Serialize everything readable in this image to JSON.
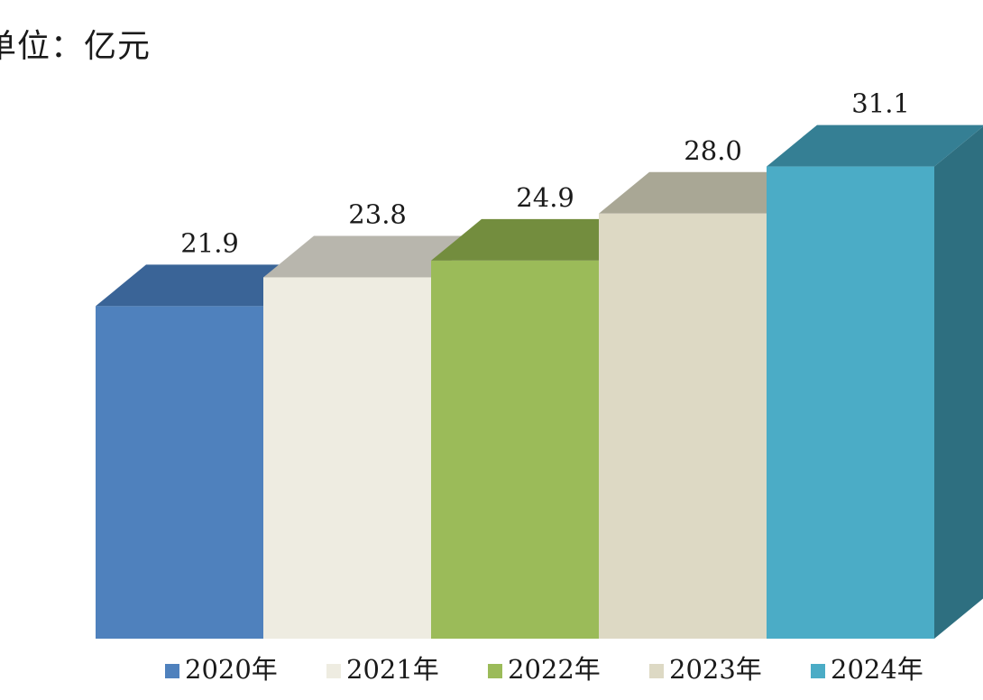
{
  "chart_data": {
    "type": "bar",
    "unit_label": "单位：亿元",
    "categories": [
      "2020年",
      "2021年",
      "2022年",
      "2023年",
      "2024年"
    ],
    "values": [
      21.9,
      23.8,
      24.9,
      28.0,
      31.1
    ],
    "value_labels": [
      "21.9",
      "23.8",
      "24.9",
      "28.0",
      "31.1"
    ],
    "legend_position": "bottom",
    "grid": false,
    "colors": {
      "front": [
        "#4f81bd",
        "#eeece1",
        "#9bbb59",
        "#ddd9c4",
        "#4bacc6"
      ],
      "top": [
        "#3a6497",
        "#b8b6ad",
        "#738d3e",
        "#a9a795",
        "#357f94"
      ],
      "side": [
        "#3a6497",
        "#b8b6ad",
        "#738d3e",
        "#a9a795",
        "#2e6f80"
      ]
    }
  }
}
